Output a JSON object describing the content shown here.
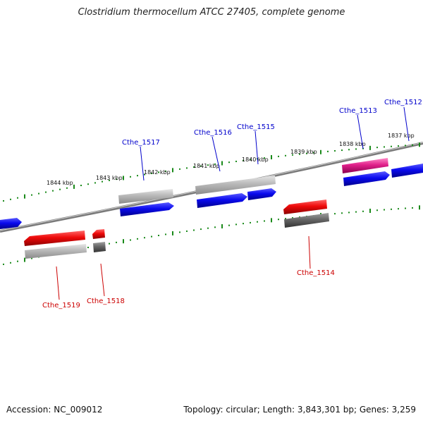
{
  "title": "Clostridium thermocellum ATCC 27405, complete genome",
  "footer": {
    "accession": "Accession: NC_009012",
    "summary": "Topology: circular; Length: 3,843,301 bp; Genes: 3,259"
  },
  "colors": {
    "backbone": "#7a7a7a",
    "ticks": "#1a8a1a",
    "forward_label": "#0000cc",
    "reverse_label": "#cc0000",
    "cds_blue": "#0a0aee",
    "cds_red": "#ee0a0a",
    "light_gray": "#b8b8b8",
    "dark_gray": "#666666",
    "magenta": "#e0208a"
  },
  "tick_labels": [
    "1844 kbp",
    "1843 kbp",
    "1842 kbp",
    "1841 kbp",
    "1840 kbp",
    "1839 kbp",
    "1838 kbp",
    "1837 kbp"
  ],
  "genes": [
    {
      "locus": "Cthe_1512",
      "strand": "forward"
    },
    {
      "locus": "Cthe_1513",
      "strand": "forward"
    },
    {
      "locus": "Cthe_1515",
      "strand": "forward"
    },
    {
      "locus": "Cthe_1516",
      "strand": "forward"
    },
    {
      "locus": "Cthe_1517",
      "strand": "forward"
    },
    {
      "locus": "Cthe_1514",
      "strand": "reverse"
    },
    {
      "locus": "Cthe_1518",
      "strand": "reverse"
    },
    {
      "locus": "Cthe_1519",
      "strand": "reverse"
    }
  ]
}
